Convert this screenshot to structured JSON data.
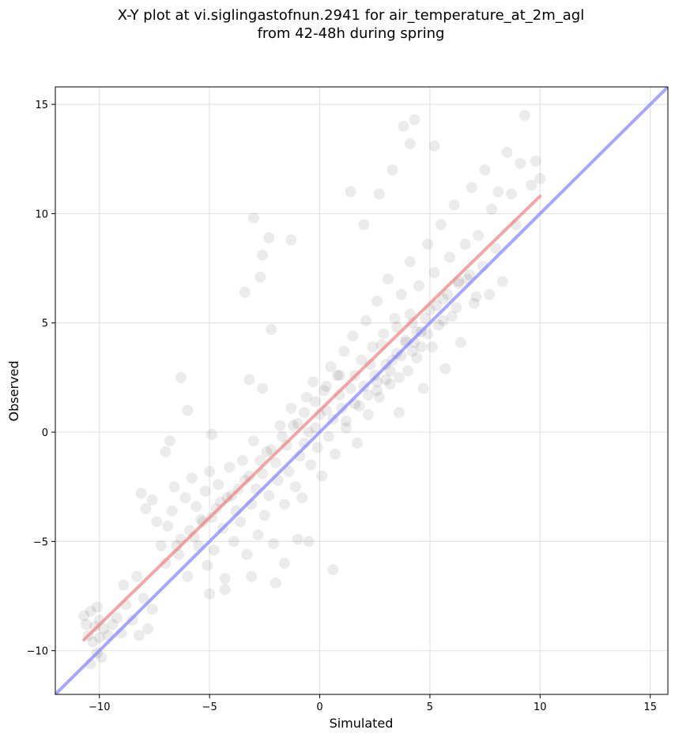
{
  "chart_data": {
    "type": "scatter",
    "title_line1": "X-Y plot at vi.siglingastofnun.2941 for air_temperature_at_2m_agl",
    "title_line2": "from 42-48h during spring",
    "xlabel": "Simulated",
    "ylabel": "Observed",
    "xlim": [
      -12.0,
      15.8
    ],
    "ylim": [
      -12.0,
      15.8
    ],
    "xticks": [
      -10,
      -5,
      0,
      5,
      10,
      15
    ],
    "yticks": [
      -10,
      -5,
      0,
      5,
      10,
      15
    ],
    "xtick_labels": [
      "−10",
      "−5",
      "0",
      "5",
      "10",
      "15"
    ],
    "ytick_labels": [
      "−10",
      "−5",
      "0",
      "5",
      "10",
      "15"
    ],
    "grid": true,
    "point_color": "#000000",
    "point_alpha": 0.08,
    "lines": [
      {
        "role": "regression",
        "color": "#f08080",
        "x": [
          -10.7,
          10.0
        ],
        "y": [
          -9.5,
          10.8
        ]
      },
      {
        "role": "identity",
        "color": "#8080ff",
        "x": [
          -12.0,
          15.8
        ],
        "y": [
          -12.0,
          15.8
        ]
      }
    ],
    "points": [
      [
        -10.7,
        -8.4
      ],
      [
        -10.6,
        -8.8
      ],
      [
        -10.5,
        -9.3
      ],
      [
        -10.4,
        -8.2
      ],
      [
        -10.3,
        -9.6
      ],
      [
        -10.2,
        -8.9
      ],
      [
        -10.1,
        -10.1
      ],
      [
        -10.0,
        -9.4
      ],
      [
        -10.0,
        -8.6
      ],
      [
        -9.9,
        -10.3
      ],
      [
        -9.8,
        -9.0
      ],
      [
        -10.4,
        -10.6
      ],
      [
        -10.1,
        -8.0
      ],
      [
        -9.6,
        -9.3
      ],
      [
        -9.4,
        -8.8
      ],
      [
        -9.2,
        -8.5
      ],
      [
        -9.0,
        -9.2
      ],
      [
        -8.8,
        -7.9
      ],
      [
        -8.5,
        -8.6
      ],
      [
        -8.2,
        -9.3
      ],
      [
        -8.0,
        -7.6
      ],
      [
        -7.8,
        -9.0
      ],
      [
        -7.6,
        -8.1
      ],
      [
        -8.9,
        -7.0
      ],
      [
        -8.3,
        -6.6
      ],
      [
        -8.1,
        -2.8
      ],
      [
        -7.9,
        -3.5
      ],
      [
        -7.6,
        -3.1
      ],
      [
        -7.4,
        -4.1
      ],
      [
        -7.2,
        -5.2
      ],
      [
        -7.0,
        -6.0
      ],
      [
        -6.9,
        -4.3
      ],
      [
        -6.7,
        -3.6
      ],
      [
        -6.6,
        -2.5
      ],
      [
        -6.4,
        -5.6
      ],
      [
        -6.3,
        -4.9
      ],
      [
        -6.1,
        -3.0
      ],
      [
        -6.0,
        -6.6
      ],
      [
        -5.9,
        -4.5
      ],
      [
        -5.8,
        -2.1
      ],
      [
        -5.6,
        -3.4
      ],
      [
        -5.5,
        -5.2
      ],
      [
        -5.4,
        -4.0
      ],
      [
        -5.2,
        -2.7
      ],
      [
        -5.1,
        -6.1
      ],
      [
        -5.0,
        -1.8
      ],
      [
        -4.9,
        -3.9
      ],
      [
        -4.8,
        -5.4
      ],
      [
        -4.6,
        -2.4
      ],
      [
        -4.5,
        -3.2
      ],
      [
        -4.4,
        -4.4
      ],
      [
        -4.3,
        -6.7
      ],
      [
        -4.1,
        -1.6
      ],
      [
        -4.0,
        -2.9
      ],
      [
        -3.9,
        -5.0
      ],
      [
        -3.8,
        -3.6
      ],
      [
        -3.6,
        -4.1
      ],
      [
        -3.5,
        -1.3
      ],
      [
        -3.4,
        -2.2
      ],
      [
        -3.3,
        -5.6
      ],
      [
        -3.1,
        -3.3
      ],
      [
        -3.0,
        -0.4
      ],
      [
        -2.9,
        -2.6
      ],
      [
        -2.8,
        -4.7
      ],
      [
        -2.6,
        -1.9
      ],
      [
        -2.5,
        -3.8
      ],
      [
        -2.4,
        -0.9
      ],
      [
        -2.3,
        -2.9
      ],
      [
        -2.1,
        -5.1
      ],
      [
        -2.0,
        -1.4
      ],
      [
        -1.9,
        -2.2
      ],
      [
        -1.8,
        0.3
      ],
      [
        -1.6,
        -3.3
      ],
      [
        -1.5,
        -0.6
      ],
      [
        -1.4,
        -1.8
      ],
      [
        -1.3,
        1.1
      ],
      [
        -1.1,
        -2.5
      ],
      [
        -1.0,
        0.4
      ],
      [
        -0.9,
        -1.1
      ],
      [
        -0.8,
        -3.0
      ],
      [
        -0.6,
        1.6
      ],
      [
        -0.5,
        0.0
      ],
      [
        -0.4,
        -1.5
      ],
      [
        -0.3,
        2.3
      ],
      [
        -0.1,
        -0.7
      ],
      [
        0.0,
        0.8
      ],
      [
        0.1,
        -2.0
      ],
      [
        0.2,
        1.9
      ],
      [
        0.4,
        -0.2
      ],
      [
        0.5,
        3.0
      ],
      [
        0.6,
        0.6
      ],
      [
        0.7,
        -1.0
      ],
      [
        0.9,
        2.6
      ],
      [
        1.0,
        1.1
      ],
      [
        1.1,
        3.7
      ],
      [
        1.2,
        0.2
      ],
      [
        1.4,
        2.0
      ],
      [
        1.5,
        4.4
      ],
      [
        1.6,
        1.3
      ],
      [
        1.7,
        -0.5
      ],
      [
        1.9,
        3.3
      ],
      [
        2.0,
        2.1
      ],
      [
        2.1,
        5.1
      ],
      [
        2.2,
        0.8
      ],
      [
        2.4,
        3.9
      ],
      [
        2.5,
        2.6
      ],
      [
        2.6,
        6.0
      ],
      [
        2.7,
        1.6
      ],
      [
        2.9,
        4.5
      ],
      [
        3.0,
        3.1
      ],
      [
        3.1,
        7.0
      ],
      [
        3.2,
        2.2
      ],
      [
        3.4,
        5.2
      ],
      [
        3.5,
        3.6
      ],
      [
        3.6,
        0.9
      ],
      [
        3.7,
        6.3
      ],
      [
        3.9,
        4.2
      ],
      [
        4.0,
        2.8
      ],
      [
        4.1,
        7.8
      ],
      [
        4.2,
        5.0
      ],
      [
        4.4,
        3.4
      ],
      [
        4.5,
        6.7
      ],
      [
        4.6,
        4.6
      ],
      [
        4.7,
        2.0
      ],
      [
        4.9,
        8.6
      ],
      [
        5.0,
        5.6
      ],
      [
        5.1,
        3.9
      ],
      [
        5.2,
        7.3
      ],
      [
        5.4,
        4.9
      ],
      [
        5.5,
        9.5
      ],
      [
        5.6,
        6.1
      ],
      [
        5.7,
        2.9
      ],
      [
        5.9,
        8.0
      ],
      [
        6.0,
        5.3
      ],
      [
        6.1,
        10.4
      ],
      [
        6.3,
        6.8
      ],
      [
        6.4,
        4.1
      ],
      [
        6.6,
        8.6
      ],
      [
        6.7,
        7.0
      ],
      [
        6.9,
        11.2
      ],
      [
        7.0,
        5.9
      ],
      [
        7.2,
        9.0
      ],
      [
        7.4,
        7.6
      ],
      [
        7.5,
        12.0
      ],
      [
        7.7,
        6.3
      ],
      [
        7.8,
        10.2
      ],
      [
        8.0,
        8.4
      ],
      [
        8.1,
        11.0
      ],
      [
        8.3,
        6.9
      ],
      [
        8.5,
        12.8
      ],
      [
        8.7,
        10.9
      ],
      [
        8.9,
        9.5
      ],
      [
        9.1,
        12.3
      ],
      [
        9.3,
        14.5
      ],
      [
        9.6,
        11.3
      ],
      [
        9.8,
        12.4
      ],
      [
        10.0,
        11.6
      ],
      [
        5.2,
        13.1
      ],
      [
        4.3,
        14.3
      ],
      [
        3.8,
        14.0
      ],
      [
        4.1,
        13.2
      ],
      [
        3.3,
        12.0
      ],
      [
        2.7,
        10.9
      ],
      [
        2.0,
        9.5
      ],
      [
        1.4,
        11.0
      ],
      [
        -1.3,
        8.8
      ],
      [
        -2.3,
        8.9
      ],
      [
        -2.6,
        8.1
      ],
      [
        -2.7,
        7.1
      ],
      [
        -3.0,
        9.8
      ],
      [
        -3.4,
        6.4
      ],
      [
        -2.2,
        4.7
      ],
      [
        -2.6,
        2.0
      ],
      [
        -3.2,
        2.4
      ],
      [
        -4.9,
        -0.1
      ],
      [
        -6.3,
        2.5
      ],
      [
        -6.0,
        1.0
      ],
      [
        -6.8,
        -0.4
      ],
      [
        -7.0,
        -0.9
      ],
      [
        0.6,
        -6.3
      ],
      [
        -1.6,
        -6.0
      ],
      [
        -2.0,
        -6.9
      ],
      [
        -3.1,
        -6.6
      ],
      [
        -4.3,
        -7.2
      ],
      [
        -5.0,
        -7.4
      ],
      [
        -0.5,
        -5.0
      ],
      [
        -1.0,
        -4.9
      ],
      [
        3.6,
        2.5
      ],
      [
        4.2,
        3.7
      ],
      [
        3.9,
        4.1
      ],
      [
        4.4,
        4.6
      ],
      [
        4.8,
        5.2
      ],
      [
        3.3,
        3.3
      ],
      [
        3.0,
        2.4
      ],
      [
        2.6,
        1.9
      ],
      [
        4.6,
        3.9
      ],
      [
        5.3,
        5.8
      ],
      [
        5.8,
        6.3
      ],
      [
        6.3,
        6.9
      ],
      [
        6.8,
        7.2
      ],
      [
        4.1,
        5.4
      ],
      [
        3.5,
        4.8
      ],
      [
        2.8,
        4.0
      ],
      [
        2.3,
        3.1
      ],
      [
        1.6,
        2.6
      ],
      [
        0.9,
        1.7
      ],
      [
        0.3,
        1.0
      ],
      [
        -0.2,
        0.2
      ],
      [
        -0.7,
        -0.5
      ],
      [
        1.2,
        0.5
      ],
      [
        1.8,
        1.2
      ],
      [
        2.2,
        1.7
      ],
      [
        2.6,
        2.3
      ],
      [
        3.2,
        2.8
      ],
      [
        3.7,
        3.5
      ],
      [
        4.3,
        4.1
      ],
      [
        4.9,
        4.5
      ],
      [
        5.6,
        5.1
      ],
      [
        6.2,
        5.7
      ],
      [
        7.1,
        6.2
      ],
      [
        -4.2,
        -3.0
      ],
      [
        -4.7,
        -3.5
      ],
      [
        -5.3,
        -4.1
      ],
      [
        -5.7,
        -4.8
      ],
      [
        -6.5,
        -5.2
      ],
      [
        -3.7,
        -2.6
      ],
      [
        -3.2,
        -2.0
      ],
      [
        -2.7,
        -1.3
      ],
      [
        -2.2,
        -0.8
      ],
      [
        -1.7,
        -0.2
      ],
      [
        -1.2,
        0.3
      ],
      [
        -0.7,
        0.9
      ],
      [
        -0.2,
        1.4
      ],
      [
        0.3,
        2.1
      ],
      [
        0.8,
        2.6
      ]
    ]
  }
}
